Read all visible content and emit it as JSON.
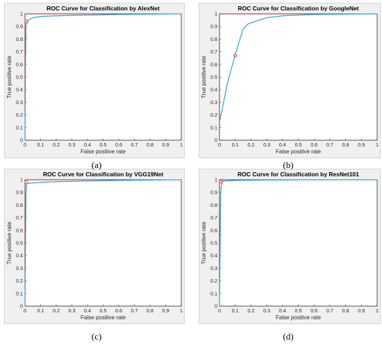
{
  "chart_data": [
    {
      "type": "line",
      "title": "ROC Curve for Classification by AlexNet",
      "xlabel": "False positive rate",
      "ylabel": "True positive rate",
      "xlim": [
        0,
        1
      ],
      "ylim": [
        0,
        1
      ],
      "xticks": [
        "0",
        "0.1",
        "0.2",
        "0.3",
        "0.4",
        "0.5",
        "0.6",
        "0.7",
        "0.8",
        "0.9",
        "1"
      ],
      "yticks": [
        "0",
        "0.1",
        "0.2",
        "0.3",
        "0.4",
        "0.5",
        "0.6",
        "0.7",
        "0.8",
        "0.9",
        "1"
      ],
      "grid": false,
      "series": [
        {
          "x": [
            0,
            0.003,
            0.006,
            0.01,
            0.02,
            0.05,
            0.1,
            0.2,
            0.4,
            0.6,
            0.8,
            1.0
          ],
          "y": [
            0,
            0.6,
            0.9,
            0.935,
            0.95,
            0.97,
            0.98,
            0.985,
            0.99,
            0.995,
            0.998,
            1.0
          ],
          "color": "#2a9fd6"
        }
      ],
      "reference_line": {
        "x": [
          0,
          0,
          1
        ],
        "y": [
          0,
          1,
          1
        ],
        "color": "#8b2a2a"
      },
      "operating_point": {
        "x": 0.01,
        "y": 0.94,
        "color": "#e0453a"
      }
    },
    {
      "type": "line",
      "title": "ROC Curve for Classification by GoogleNet",
      "xlabel": "False positive rate",
      "ylabel": "True positive rate",
      "xlim": [
        0,
        1
      ],
      "ylim": [
        0,
        1
      ],
      "xticks": [
        "0",
        "0.1",
        "0.2",
        "0.3",
        "0.4",
        "0.5",
        "0.6",
        "0.7",
        "0.8",
        "0.9",
        "1"
      ],
      "yticks": [
        "0",
        "0.1",
        "0.2",
        "0.3",
        "0.4",
        "0.5",
        "0.6",
        "0.7",
        "0.8",
        "0.9",
        "1"
      ],
      "grid": false,
      "series": [
        {
          "x": [
            0,
            0.01,
            0.05,
            0.1,
            0.15,
            0.18,
            0.25,
            0.3,
            0.4,
            0.5,
            0.6,
            0.8,
            1.0
          ],
          "y": [
            0.15,
            0.2,
            0.45,
            0.68,
            0.88,
            0.92,
            0.95,
            0.97,
            0.985,
            0.99,
            0.995,
            0.998,
            1.0
          ],
          "color": "#2a9fd6"
        }
      ],
      "reference_line": {
        "x": [
          0,
          0,
          1
        ],
        "y": [
          0,
          1,
          1
        ],
        "color": "#8b2a2a"
      },
      "operating_point": {
        "x": 0.1,
        "y": 0.67,
        "color": "#e0453a"
      }
    },
    {
      "type": "line",
      "title": "ROC Curve for Classification by VGG19Net",
      "xlabel": "False positive rate",
      "ylabel": "True positive rate",
      "xlim": [
        0,
        1
      ],
      "ylim": [
        0,
        1
      ],
      "xticks": [
        "0",
        "0.1",
        "0.2",
        "0.3",
        "0.4",
        "0.5",
        "0.6",
        "0.7",
        "0.8",
        "0.9",
        "1"
      ],
      "yticks": [
        "0",
        "0.1",
        "0.2",
        "0.3",
        "0.4",
        "0.5",
        "0.6",
        "0.7",
        "0.8",
        "0.9",
        "1"
      ],
      "grid": false,
      "series": [
        {
          "x": [
            0,
            0.003,
            0.006,
            0.01,
            0.05,
            0.1,
            0.2,
            0.4,
            0.6,
            0.8,
            1.0
          ],
          "y": [
            0,
            0.5,
            0.9,
            0.97,
            0.975,
            0.98,
            0.985,
            0.99,
            0.995,
            0.998,
            1.0
          ],
          "color": "#2a9fd6"
        }
      ],
      "reference_line": {
        "x": [
          0,
          0,
          1
        ],
        "y": [
          0,
          1,
          1
        ],
        "color": "#8b2a2a"
      },
      "operating_point": {
        "x": 0.01,
        "y": 0.98,
        "color": "#e0453a"
      }
    },
    {
      "type": "line",
      "title": "ROC Curve for Classification by ResNet101",
      "xlabel": "False positive rate",
      "ylabel": "True positive rate",
      "xlim": [
        0,
        1
      ],
      "ylim": [
        0,
        1
      ],
      "xticks": [
        "0",
        "0.1",
        "0.2",
        "0.3",
        "0.4",
        "0.5",
        "0.6",
        "0.7",
        "0.8",
        "0.9",
        "1"
      ],
      "yticks": [
        "0",
        "0.1",
        "0.2",
        "0.3",
        "0.4",
        "0.5",
        "0.6",
        "0.7",
        "0.8",
        "0.9",
        "1"
      ],
      "grid": false,
      "series": [
        {
          "x": [
            0,
            0.004,
            0.008,
            0.015,
            0.03,
            0.1,
            0.3,
            0.6,
            1.0
          ],
          "y": [
            0,
            0.5,
            0.9,
            0.985,
            0.99,
            0.995,
            0.998,
            1.0,
            1.0
          ],
          "color": "#2a9fd6"
        }
      ],
      "reference_line": {
        "x": [
          0,
          0,
          1
        ],
        "y": [
          0,
          1,
          1
        ],
        "color": "#8b2a2a"
      },
      "operating_point": {
        "x": 0.01,
        "y": 0.985,
        "color": "#e0453a"
      }
    }
  ],
  "captions": [
    "(a)",
    "(b)",
    "(c)",
    "(d)"
  ]
}
